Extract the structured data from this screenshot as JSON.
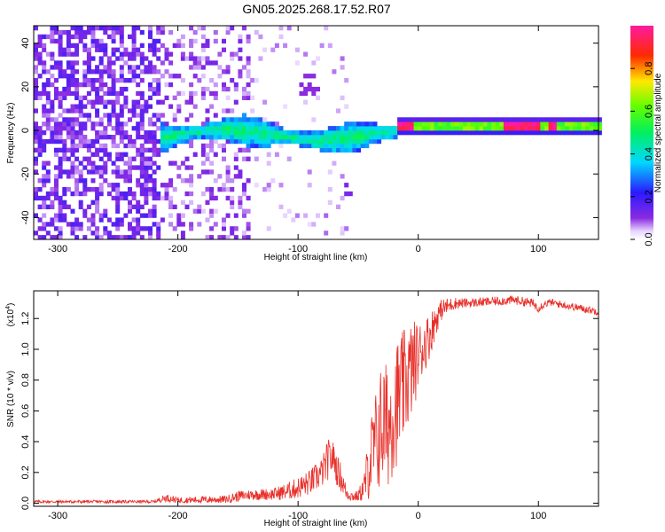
{
  "title": "GN05.2025.268.17.52.R07",
  "colors": {
    "snr_line": "#e8302a",
    "frame": "#000000",
    "background": "#ffffff"
  },
  "chart_data": [
    {
      "type": "heatmap",
      "xlabel": "Height of straight line (km)",
      "ylabel": "Frequency (Hz)",
      "xlim": [
        -320,
        150
      ],
      "ylim": [
        -50,
        48
      ],
      "xticks": [
        -300,
        -200,
        -100,
        0,
        100
      ],
      "yticks": [
        -40,
        -20,
        0,
        20,
        40
      ],
      "colorbar": {
        "label": "Normalized spectral amplitude",
        "range": [
          0,
          1
        ],
        "ticks": [
          "0.0",
          "0.2",
          "0.4",
          "0.6",
          "0.8"
        ],
        "tick_values": [
          0,
          0.2,
          0.4,
          0.6,
          0.8
        ],
        "colormap": "rainbow (white/violet - blue - cyan - green - yellow - red - magenta)"
      },
      "description_regions": [
        {
          "x_range": [
            -320,
            -215
          ],
          "y_range": [
            -50,
            48
          ],
          "amplitude": [
            0.05,
            0.2
          ],
          "pattern": "scattered noise"
        },
        {
          "x_range": [
            -215,
            -140
          ],
          "y_range": [
            -50,
            48
          ],
          "amplitude": [
            0.05,
            0.15
          ],
          "pattern": "sparse noise"
        },
        {
          "x_range": [
            -215,
            -20
          ],
          "y_center": -2,
          "amplitude": [
            0.2,
            0.5
          ],
          "pattern": "main signal band"
        },
        {
          "x_range": [
            -20,
            150
          ],
          "y_center": 0,
          "amplitude": [
            0.6,
            1.0
          ],
          "pattern": "strong narrow band"
        }
      ]
    },
    {
      "type": "line",
      "xlabel": "Height of straight line (km)",
      "ylabel": "SNR (10 * v/v)",
      "yscale_label": "(x10",
      "yscale_exp": "4",
      "yscale_close": ")",
      "xlim": [
        -320,
        150
      ],
      "ylim": [
        -0.02,
        1.38
      ],
      "xticks": [
        -300,
        -200,
        -100,
        0,
        100
      ],
      "yticks": [
        "0.0",
        "0.2",
        "0.4",
        "0.6",
        "0.8",
        "1.0",
        "1.2"
      ],
      "ytick_values": [
        0,
        0.2,
        0.4,
        0.6,
        0.8,
        1.0,
        1.2
      ],
      "x": [
        -320,
        -220,
        -210,
        -200,
        -160,
        -150,
        -140,
        -120,
        -110,
        -100,
        -90,
        -80,
        -75,
        -70,
        -68,
        -65,
        -60,
        -55,
        -50,
        -45,
        -40,
        -35,
        -30,
        -25,
        -20,
        -15,
        -10,
        -5,
        0,
        5,
        10,
        15,
        20,
        30,
        40,
        60,
        80,
        95,
        100,
        105,
        110,
        130,
        150
      ],
      "y": [
        0.01,
        0.01,
        0.03,
        0.02,
        0.03,
        0.04,
        0.06,
        0.06,
        0.07,
        0.09,
        0.13,
        0.2,
        0.3,
        0.35,
        0.22,
        0.18,
        0.07,
        0.05,
        0.04,
        0.05,
        0.1,
        0.3,
        0.45,
        0.5,
        0.55,
        0.7,
        0.85,
        1.0,
        1.05,
        1.1,
        1.15,
        1.22,
        1.28,
        1.3,
        1.3,
        1.31,
        1.32,
        1.3,
        1.27,
        1.3,
        1.31,
        1.28,
        1.25
      ],
      "envelope_upper": [
        0.02,
        0.02,
        0.06,
        0.04,
        0.05,
        0.08,
        0.09,
        0.1,
        0.13,
        0.17,
        0.22,
        0.3,
        0.42,
        0.4,
        0.32,
        0.28,
        0.12,
        0.08,
        0.08,
        0.2,
        0.55,
        0.75,
        0.95,
        0.9,
        1.05,
        1.1,
        1.15,
        1.2,
        1.18,
        1.2,
        1.25,
        1.3,
        1.33,
        1.34,
        1.33,
        1.34,
        1.35,
        1.33,
        1.3,
        1.32,
        1.33,
        1.3,
        1.27
      ],
      "envelope_lower": [
        0.0,
        0.0,
        0.01,
        0.0,
        0.0,
        0.01,
        0.02,
        0.02,
        0.02,
        0.03,
        0.05,
        0.1,
        0.15,
        0.2,
        0.12,
        0.08,
        0.02,
        0.01,
        0.01,
        0.01,
        0.02,
        0.05,
        0.08,
        0.1,
        0.2,
        0.3,
        0.45,
        0.55,
        0.75,
        0.85,
        0.95,
        1.1,
        1.2,
        1.26,
        1.27,
        1.28,
        1.29,
        1.27,
        1.24,
        1.27,
        1.28,
        1.25,
        1.22
      ]
    }
  ]
}
